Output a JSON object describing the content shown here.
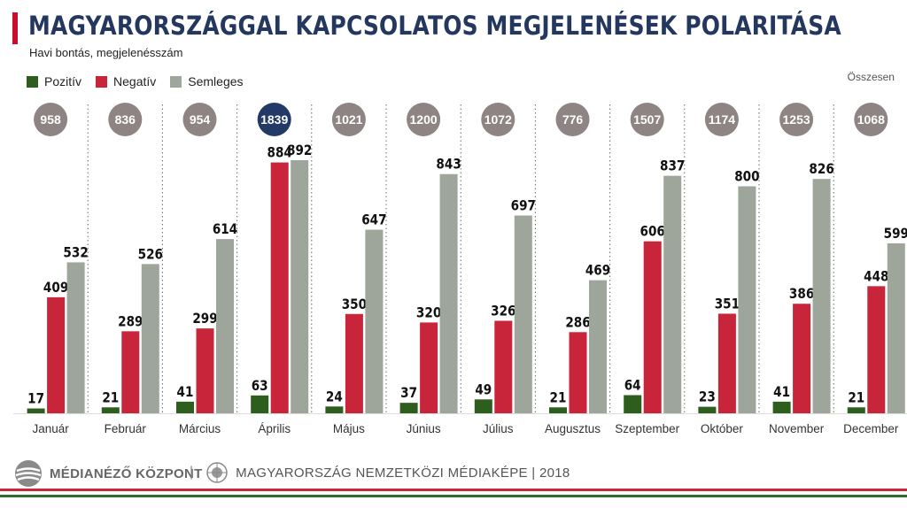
{
  "title": "MAGYARORSZÁGGAL KAPCSOLATOS MEGJELENÉSEK POLARITÁSA",
  "subtitle": "Havi bontás, megjelenésszám",
  "legend": [
    {
      "label": "Pozitív",
      "color": "#2e5e1e"
    },
    {
      "label": "Negatív",
      "color": "#c8253a"
    },
    {
      "label": "Semleges",
      "color": "#9ea59a"
    }
  ],
  "total_header": "Összesen",
  "footer": {
    "brand": "MÉDIANÉZŐ KÖZPONT",
    "project": "MAGYARORSZÁG NEMZETKÖZI MÉDIAKÉPE | 2018"
  },
  "colors": {
    "positive": "#2e5e1e",
    "negative": "#c8253a",
    "neutral": "#9ea59a",
    "total_circle": "#8e8484",
    "highlight_circle": "#243a66",
    "title": "#23375f"
  },
  "chart_data": {
    "type": "bar",
    "title": "MAGYARORSZÁGGAL KAPCSOLATOS MEGJELENÉSEK POLARITÁSA",
    "subtitle": "Havi bontás, megjelenésszám",
    "xlabel": "",
    "ylabel": "",
    "ylim": [
      0,
      900
    ],
    "grid": false,
    "legend_position": "top-left",
    "categories": [
      "Január",
      "Február",
      "Március",
      "Április",
      "Május",
      "Június",
      "Július",
      "Augusztus",
      "Szeptember",
      "Október",
      "November",
      "December"
    ],
    "series": [
      {
        "name": "Pozitív",
        "values": [
          17,
          21,
          41,
          63,
          24,
          37,
          49,
          21,
          64,
          23,
          41,
          21
        ]
      },
      {
        "name": "Negatív",
        "values": [
          409,
          289,
          299,
          884,
          350,
          320,
          326,
          286,
          606,
          351,
          386,
          448
        ]
      },
      {
        "name": "Semleges",
        "values": [
          532,
          526,
          614,
          892,
          647,
          843,
          697,
          469,
          837,
          800,
          826,
          599
        ]
      }
    ],
    "totals": [
      958,
      836,
      954,
      1839,
      1021,
      1200,
      1072,
      776,
      1507,
      1174,
      1253,
      1068
    ],
    "highlight_index": 3
  }
}
